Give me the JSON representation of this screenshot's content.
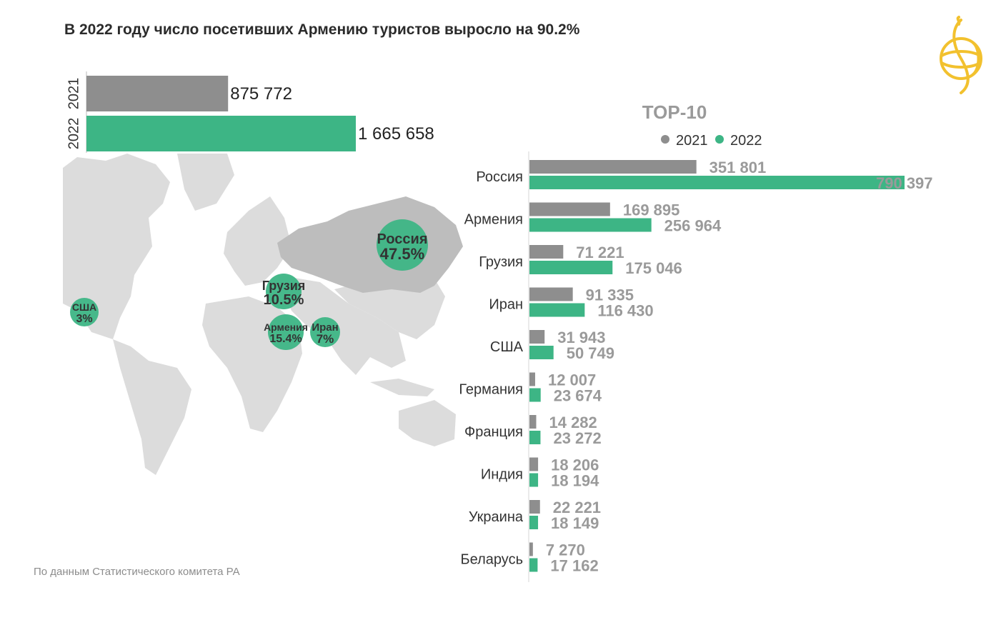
{
  "title": "В 2022 году число посетивших Армению туристов выросло на 90.2%",
  "source": "По данным Статистического комитета РА",
  "colors": {
    "y2021": "#8e8e8e",
    "y2022": "#3db585",
    "map_land": "#dcdcdc",
    "map_russia": "#bdbdbd",
    "logo": "#f2c12e",
    "label_gray": "#9a9a9a",
    "label_dark": "#333333"
  },
  "chart_data": [
    {
      "type": "bar",
      "orientation": "horizontal",
      "categories": [
        "2021",
        "2022"
      ],
      "values": [
        875772,
        1665658
      ],
      "value_labels": [
        "875 772",
        "1 665 658"
      ],
      "xlim": [
        0,
        1665658
      ]
    },
    {
      "type": "bar",
      "orientation": "horizontal",
      "title": "TOP-10",
      "legend": {
        "position": "top",
        "entries": [
          "2021",
          "2022"
        ]
      },
      "categories": [
        "Россия",
        "Армения",
        "Грузия",
        "Иран",
        "США",
        "Германия",
        "Франция",
        "Индия",
        "Украина",
        "Беларусь"
      ],
      "series": [
        {
          "name": "2021",
          "values": [
            351801,
            169895,
            71221,
            91335,
            31943,
            12007,
            14282,
            18206,
            22221,
            7270
          ],
          "labels": [
            "351 801",
            "169 895",
            "71 221",
            "91 335",
            "31 943",
            "12 007",
            "14 282",
            "18 206",
            "22 221",
            "7 270"
          ]
        },
        {
          "name": "2022",
          "values": [
            790397,
            256964,
            175046,
            116430,
            50749,
            23674,
            23272,
            18194,
            18149,
            17162
          ],
          "labels": [
            "790 397",
            "256 964",
            "175 046",
            "116 430",
            "50 749",
            "23 674",
            "23 272",
            "18 194",
            "18 149",
            "17 162"
          ]
        }
      ],
      "xlim": [
        0,
        790397
      ]
    }
  ],
  "map_bubbles": [
    {
      "name": "Россия",
      "share": "47.5%"
    },
    {
      "name": "Грузия",
      "share": "10.5%"
    },
    {
      "name": "США",
      "share": "3%"
    },
    {
      "name": "Армения",
      "share": "15.4%"
    },
    {
      "name": "Иран",
      "share": "7%"
    }
  ]
}
